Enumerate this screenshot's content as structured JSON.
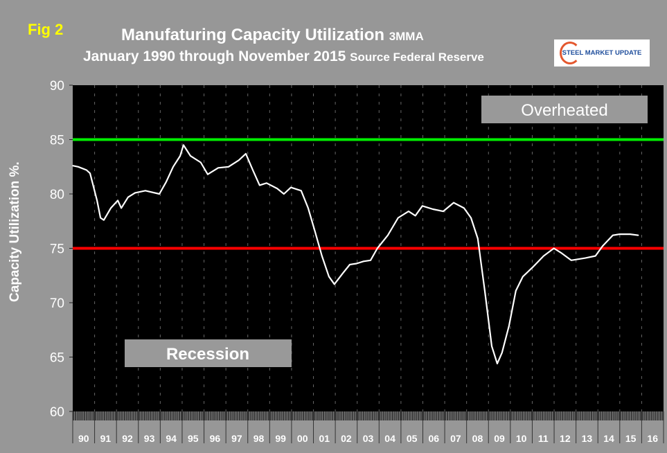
{
  "figure_label": "Fig 2",
  "logo_text": "STEEL MARKET UPDATE",
  "chart_data": {
    "type": "line",
    "title": "Manufaturing Capacity Utilization",
    "title_suffix": "3MMA",
    "subtitle": "January 1990 through November 2015",
    "subtitle_suffix": "Source Federal Reserve",
    "xlabel": "",
    "ylabel": "Capacity Utilization %.",
    "ylim": [
      60,
      90
    ],
    "yticks": [
      "90",
      "85",
      "80",
      "75",
      "70",
      "65",
      "60"
    ],
    "xlim": [
      1990,
      2017
    ],
    "xtick_labels": [
      "90",
      "91",
      "92",
      "93",
      "94",
      "95",
      "96",
      "97",
      "98",
      "99",
      "00",
      "01",
      "02",
      "03",
      "04",
      "05",
      "06",
      "07",
      "08",
      "09",
      "10",
      "11",
      "12",
      "13",
      "14",
      "15",
      "16"
    ],
    "reference_lines": [
      {
        "name": "Overheated",
        "value": 85,
        "color": "#00ee00"
      },
      {
        "name": "Recession",
        "value": 75,
        "color": "#ff0000"
      }
    ],
    "annotations": [
      "Overheated",
      "Recession"
    ],
    "series": [
      {
        "name": "Capacity Utilization 3MMA",
        "color": "#ffffff",
        "x": [
          1990.0,
          1990.25,
          1990.63,
          1990.79,
          1991.11,
          1991.27,
          1991.42,
          1991.74,
          1992.06,
          1992.22,
          1992.53,
          1992.85,
          1993.32,
          1993.96,
          1994.27,
          1994.59,
          1994.91,
          1995.06,
          1995.38,
          1995.85,
          1996.17,
          1996.65,
          1997.12,
          1997.59,
          1997.91,
          1998.23,
          1998.54,
          1998.86,
          1999.34,
          1999.65,
          1999.97,
          2000.44,
          2000.76,
          2001.08,
          2001.39,
          2001.71,
          2001.96,
          2002.34,
          2002.66,
          2002.97,
          2003.29,
          2003.61,
          2003.92,
          2004.4,
          2004.87,
          2005.35,
          2005.66,
          2005.98,
          2006.46,
          2006.93,
          2007.41,
          2007.88,
          2008.2,
          2008.51,
          2008.83,
          2009.15,
          2009.4,
          2009.62,
          2009.94,
          2010.25,
          2010.57,
          2011.04,
          2011.52,
          2011.99,
          2012.31,
          2012.78,
          2013.42,
          2013.89,
          2014.21,
          2014.68,
          2015.0,
          2015.47,
          2015.85
        ],
        "y": [
          82.6,
          82.5,
          82.2,
          81.9,
          79.4,
          77.8,
          77.6,
          78.7,
          79.4,
          78.7,
          79.7,
          80.1,
          80.3,
          80.0,
          81.1,
          82.5,
          83.5,
          84.5,
          83.5,
          82.9,
          81.8,
          82.4,
          82.5,
          83.1,
          83.7,
          82.2,
          80.8,
          81.0,
          80.5,
          80.0,
          80.6,
          80.3,
          78.7,
          76.5,
          74.3,
          72.4,
          71.7,
          72.7,
          73.5,
          73.6,
          73.8,
          73.9,
          75.0,
          76.2,
          77.8,
          78.4,
          78.0,
          78.9,
          78.6,
          78.4,
          79.2,
          78.7,
          77.8,
          75.9,
          71.1,
          66.0,
          64.4,
          65.4,
          67.9,
          71.1,
          72.4,
          73.3,
          74.3,
          75.0,
          74.6,
          73.9,
          74.1,
          74.3,
          75.2,
          76.2,
          76.3,
          76.3,
          76.2
        ]
      }
    ]
  }
}
